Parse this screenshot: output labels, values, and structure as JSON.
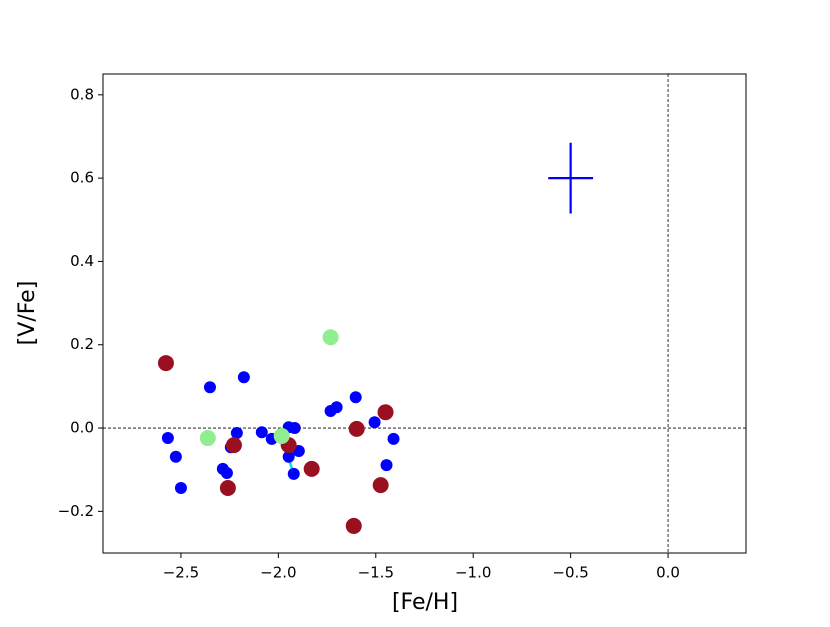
{
  "chart_data": {
    "type": "scatter",
    "xlabel": "[Fe/H]",
    "ylabel": "[V/Fe]",
    "xlim": [
      -2.9,
      0.4
    ],
    "ylim": [
      -0.3,
      0.85
    ],
    "xticks": [
      {
        "value": -2.5,
        "label": "−2.5"
      },
      {
        "value": -2.0,
        "label": "−2.0"
      },
      {
        "value": -1.5,
        "label": "−1.5"
      },
      {
        "value": -1.0,
        "label": "−1.0"
      },
      {
        "value": -0.5,
        "label": "−0.5"
      },
      {
        "value": 0.0,
        "label": "0.0"
      }
    ],
    "yticks": [
      {
        "value": -0.2,
        "label": "−0.2"
      },
      {
        "value": 0.0,
        "label": "0.0"
      },
      0.2,
      0.4,
      0.6,
      0.8
    ],
    "reference_lines": {
      "x": 0,
      "y": 0
    },
    "series": [
      {
        "color": "#00e5e5",
        "mode": "segments",
        "x": [
          -2.27,
          -2.265,
          null,
          -1.95,
          -1.925
        ],
        "values": [
          -0.095,
          -0.115,
          null,
          -0.07,
          -0.105
        ]
      },
      {
        "color": "#0000ff",
        "size": 6,
        "x": [
          -2.567,
          -2.526,
          -2.5,
          -2.351,
          -2.177,
          -2.285,
          -2.264,
          -2.244,
          -2.213,
          -2.085,
          -2.034,
          -1.947,
          -1.916,
          -1.947,
          -1.921,
          -1.895,
          -1.732,
          -1.701,
          -1.603,
          -1.506,
          -1.409,
          -1.445
        ],
        "values": [
          -0.024,
          -0.069,
          -0.144,
          0.098,
          0.122,
          -0.098,
          -0.108,
          -0.046,
          -0.012,
          -0.01,
          -0.026,
          0.002,
          0.0,
          -0.069,
          -0.11,
          -0.055,
          0.041,
          0.05,
          0.074,
          0.014,
          -0.026,
          -0.089
        ]
      },
      {
        "color": "#9b1020",
        "size": 8,
        "x": [
          -2.577,
          -2.228,
          -2.259,
          -1.947,
          -1.829,
          -1.598,
          -1.45,
          -1.475,
          -1.613
        ],
        "values": [
          0.156,
          -0.041,
          -0.144,
          -0.041,
          -0.098,
          -0.002,
          0.038,
          -0.137,
          -0.235
        ]
      },
      {
        "color": "#90ee90",
        "size": 8,
        "x": [
          -2.362,
          -1.983,
          -1.732
        ],
        "values": [
          -0.024,
          -0.019,
          0.218
        ]
      }
    ],
    "errorbar": {
      "x": -0.5,
      "y": 0.6,
      "xerr": 0.115,
      "yerr": 0.085,
      "color": "#0000ff"
    }
  }
}
